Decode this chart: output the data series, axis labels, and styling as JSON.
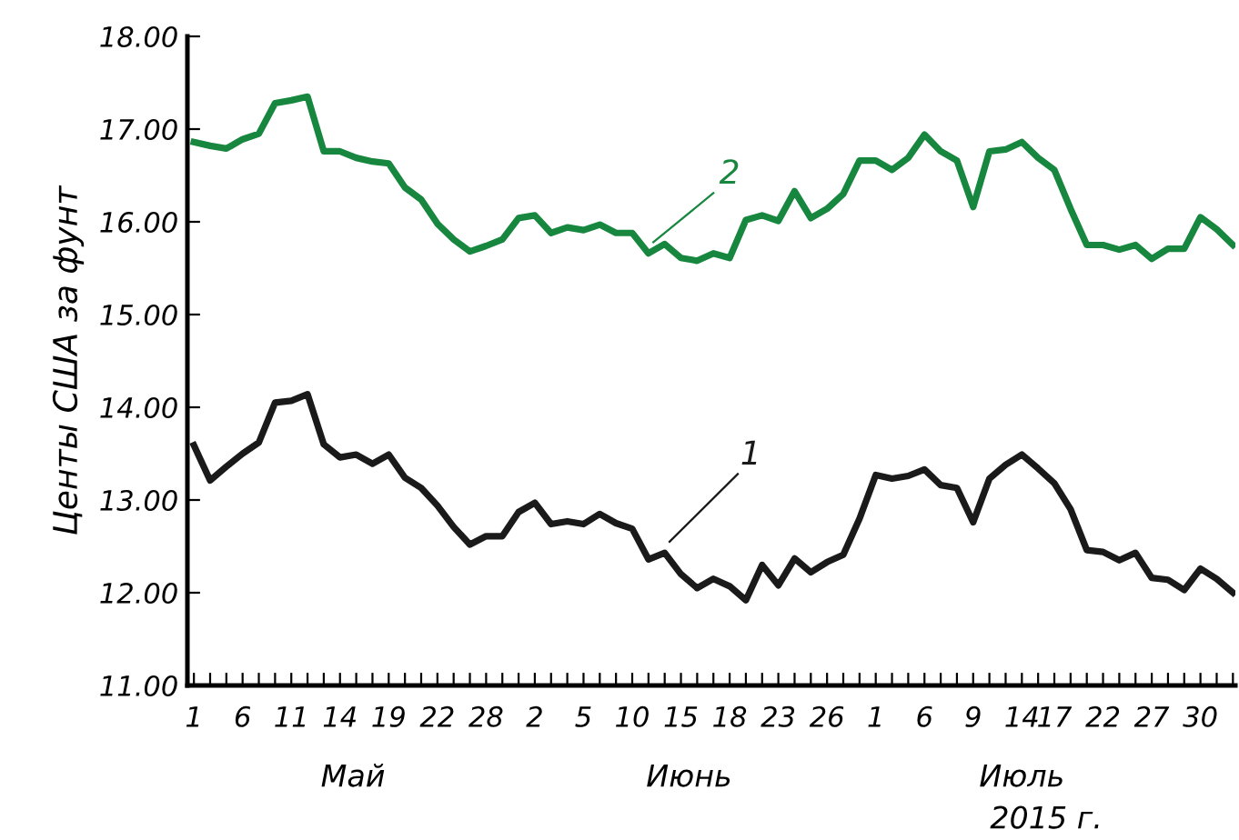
{
  "chart_data": {
    "type": "line",
    "ylabel": "Центы США за фунт",
    "categories": [
      "1",
      null,
      null,
      "6",
      null,
      null,
      "11",
      null,
      null,
      "14",
      null,
      null,
      "19",
      null,
      null,
      "22",
      null,
      null,
      "28",
      null,
      null,
      "2",
      null,
      null,
      "5",
      null,
      null,
      "10",
      null,
      null,
      "15",
      null,
      null,
      "18",
      null,
      null,
      "23",
      null,
      null,
      "26",
      null,
      null,
      "1",
      null,
      null,
      "6",
      null,
      null,
      "9",
      null,
      null,
      "14",
      null,
      "17",
      null,
      null,
      "22",
      null,
      null,
      "27",
      null,
      null,
      "30",
      null,
      null
    ],
    "series": [
      {
        "name": "2",
        "color": "#17863e",
        "values": [
          16.86,
          16.82,
          16.79,
          16.89,
          16.95,
          17.28,
          17.31,
          17.35,
          16.76,
          16.76,
          16.69,
          16.65,
          16.63,
          16.37,
          16.24,
          15.98,
          15.81,
          15.68,
          15.74,
          15.81,
          16.04,
          16.07,
          15.88,
          15.94,
          15.91,
          15.97,
          15.88,
          15.88,
          15.66,
          15.76,
          15.61,
          15.58,
          15.66,
          15.61,
          16.02,
          16.07,
          16.01,
          16.33,
          16.04,
          16.14,
          16.3,
          16.66,
          16.66,
          16.56,
          16.69,
          16.94,
          16.76,
          16.66,
          16.16,
          16.76,
          16.78,
          16.86,
          16.69,
          16.56,
          16.14,
          15.75,
          15.75,
          15.7,
          15.75,
          15.6,
          15.71,
          15.71,
          16.05,
          15.92,
          15.75
        ]
      },
      {
        "name": "1",
        "color": "#1a1a1a",
        "values": [
          13.59,
          13.21,
          13.36,
          13.5,
          13.62,
          14.05,
          14.07,
          14.14,
          13.6,
          13.46,
          13.49,
          13.39,
          13.49,
          13.24,
          13.13,
          12.94,
          12.71,
          12.52,
          12.61,
          12.61,
          12.87,
          12.97,
          12.74,
          12.77,
          12.74,
          12.85,
          12.75,
          12.69,
          12.36,
          12.43,
          12.2,
          12.05,
          12.15,
          12.07,
          11.92,
          12.3,
          12.08,
          12.37,
          12.22,
          12.33,
          12.41,
          12.8,
          13.27,
          13.23,
          13.26,
          13.33,
          13.16,
          13.13,
          12.76,
          13.23,
          13.38,
          13.49,
          13.34,
          13.18,
          12.9,
          12.46,
          12.44,
          12.35,
          12.43,
          12.16,
          12.14,
          12.03,
          12.26,
          12.15,
          12.0
        ]
      }
    ],
    "ylim": [
      11,
      18
    ],
    "yticks": [
      {
        "value": 11,
        "label": "11.00"
      },
      {
        "value": 12,
        "label": "12.00"
      },
      {
        "value": 13,
        "label": "13.00"
      },
      {
        "value": 14,
        "label": "14.00"
      },
      {
        "value": 15,
        "label": "15.00"
      },
      {
        "value": 16,
        "label": "16.00"
      },
      {
        "value": 17,
        "label": "17.00"
      },
      {
        "value": 18,
        "label": "18.00"
      }
    ],
    "annotations": [
      "Май",
      "Июнь",
      "Июль",
      "2015 г."
    ],
    "grid": false,
    "legend": false,
    "marker": "none",
    "line_style": "solid"
  }
}
